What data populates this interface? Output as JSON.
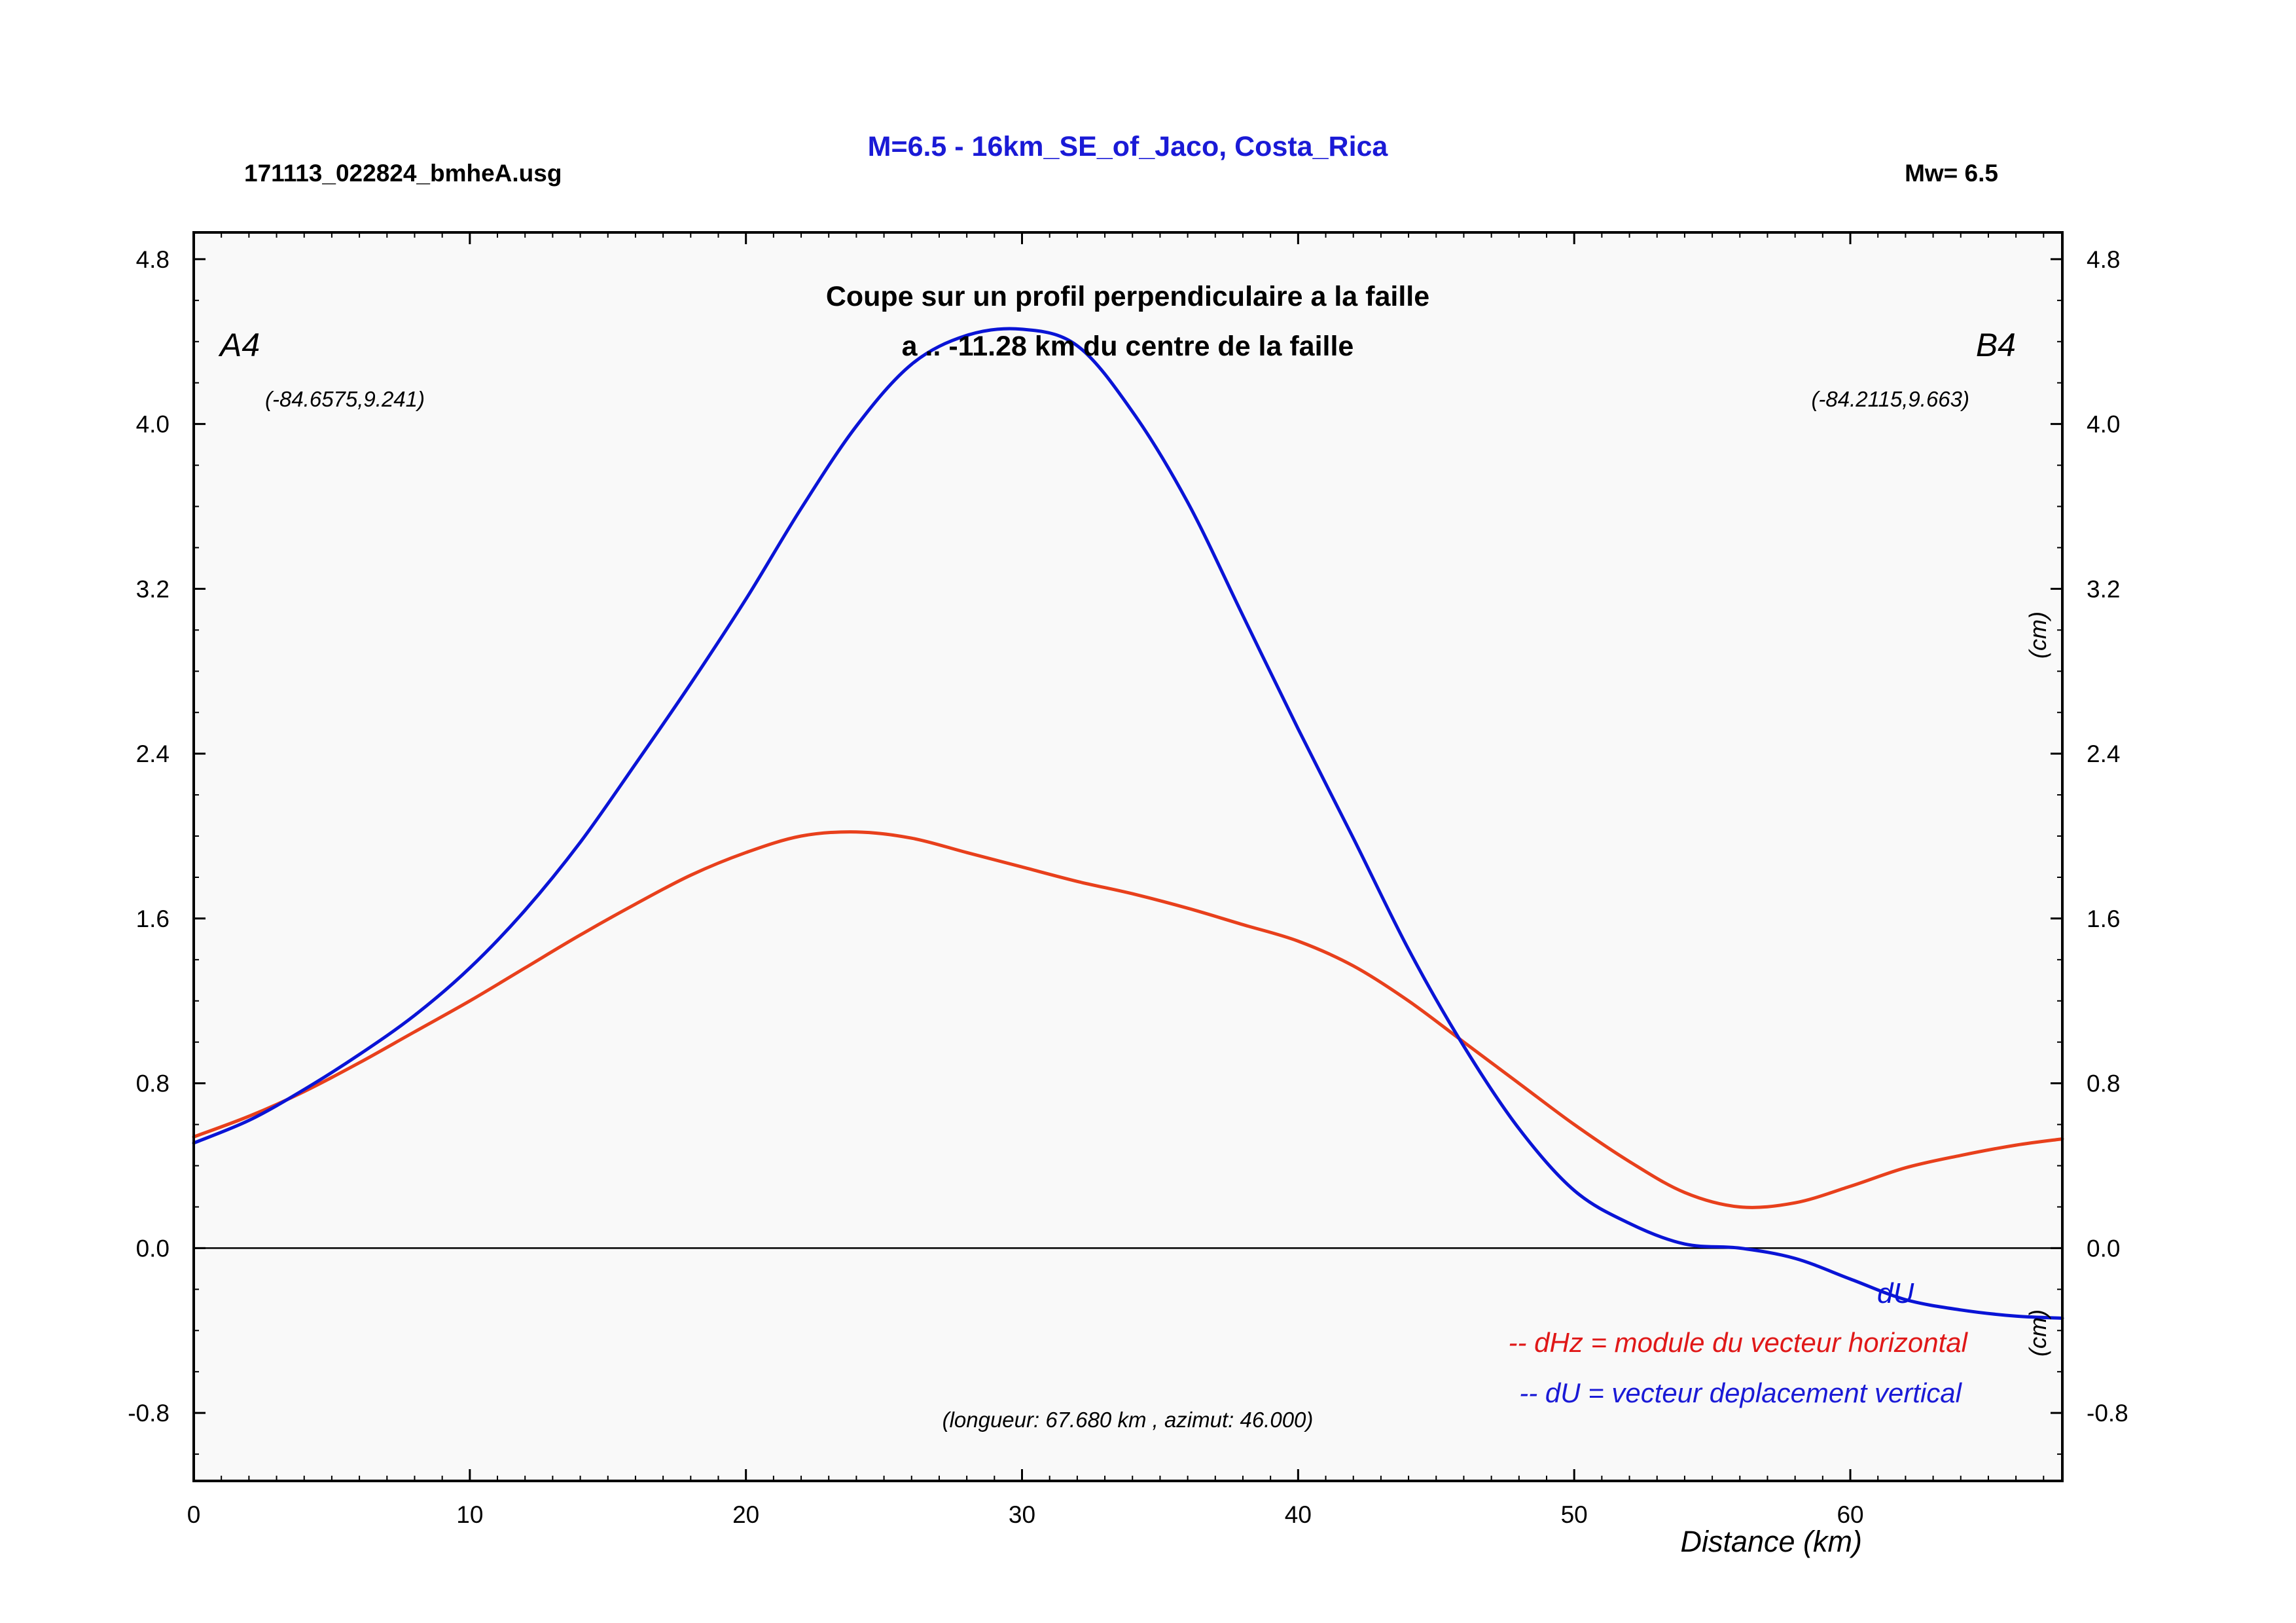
{
  "header": {
    "file": "171113_022824_bmheA.usg",
    "title": "M=6.5 - 16km_SE_of_Jaco, Costa_Rica",
    "magnitude": "Mw= 6.5"
  },
  "plot": {
    "subtitle_line1": "Coupe sur un profil perpendiculaire a la faille",
    "subtitle_line2": "a .. -11.28 km du centre de la faille",
    "point_a_label": "A4",
    "point_a_coords": "(-84.6575,9.241)",
    "point_b_label": "B4",
    "point_b_coords": "(-84.2115,9.663)",
    "info": "(longueur: 67.680 km , azimut: 46.000)",
    "du_tag": "dU",
    "legend_dhz": "-- dHz = module du vecteur horizontal",
    "legend_du": "-- dU =  vecteur deplacement vertical",
    "right_unit_upper": "(cm)",
    "right_unit_lower": "(cm)"
  },
  "colors": {
    "dhz": "#e8401c",
    "du": "#0a14d6",
    "title": "#1a1ad6",
    "legend_dhz": "#e01818",
    "legend_du": "#1a1ad6",
    "background": "#f9f9f9"
  },
  "chart_data": {
    "type": "line",
    "xlabel": "Distance (km)",
    "ylabel": "(cm)",
    "xlim": [
      0,
      67.68
    ],
    "ylim": [
      -1.13,
      4.93
    ],
    "x_ticks": [
      0,
      10,
      20,
      30,
      40,
      50,
      60
    ],
    "x_tick_labels": [
      "0",
      "10",
      "20",
      "30",
      "40",
      "50",
      "60"
    ],
    "y_ticks": [
      -0.8,
      0,
      0.8,
      1.6,
      2.4,
      3.2,
      4.0,
      4.8
    ],
    "y_tick_labels": [
      "-0.8",
      "0.0",
      "0.8",
      "1.6",
      "2.4",
      "3.2",
      "4.0",
      "4.8"
    ],
    "zero_line": true,
    "x": [
      0,
      2,
      4,
      6,
      8,
      10,
      12,
      14,
      16,
      18,
      20,
      22,
      24,
      26,
      28,
      30,
      32,
      34,
      36,
      38,
      40,
      42,
      44,
      46,
      48,
      50,
      52,
      54,
      56,
      58,
      60,
      62,
      64,
      66,
      67.68
    ],
    "series": [
      {
        "name": "dHz",
        "values": [
          0.54,
          0.64,
          0.76,
          0.9,
          1.05,
          1.2,
          1.36,
          1.52,
          1.67,
          1.81,
          1.92,
          2.0,
          2.02,
          1.99,
          1.92,
          1.85,
          1.78,
          1.72,
          1.65,
          1.57,
          1.49,
          1.37,
          1.2,
          1.0,
          0.8,
          0.6,
          0.42,
          0.27,
          0.2,
          0.22,
          0.3,
          0.39,
          0.45,
          0.5,
          0.53
        ]
      },
      {
        "name": "dU",
        "values": [
          0.51,
          0.62,
          0.77,
          0.94,
          1.13,
          1.36,
          1.64,
          1.97,
          2.35,
          2.74,
          3.15,
          3.59,
          3.99,
          4.29,
          4.43,
          4.46,
          4.38,
          4.06,
          3.62,
          3.07,
          2.52,
          1.99,
          1.45,
          0.98,
          0.58,
          0.28,
          0.12,
          0.02,
          0.0,
          -0.05,
          -0.15,
          -0.25,
          -0.3,
          -0.33,
          -0.34
        ]
      }
    ]
  }
}
